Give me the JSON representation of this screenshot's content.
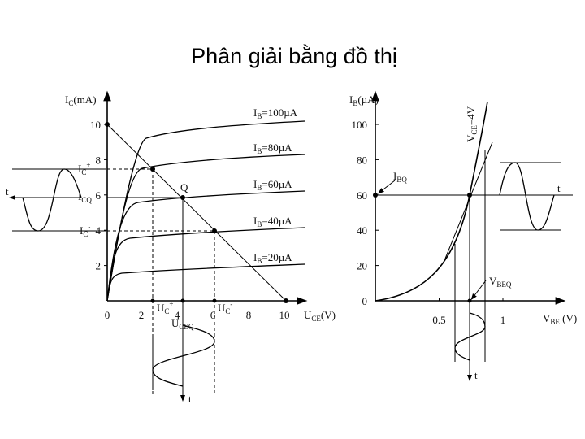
{
  "title": "Phân giải bằng đồ thị",
  "output_chart": {
    "y_label": {
      "base": "I",
      "sub": "C",
      "unit": "(mA)"
    },
    "x_label": {
      "base": "U",
      "sub": "CE",
      "unit": "(V)"
    },
    "yticks": [
      2,
      4,
      6,
      8,
      10
    ],
    "xticks": [
      0,
      2,
      4,
      6,
      8,
      10
    ],
    "curves": [
      {
        "base": "I",
        "sub": "B",
        "value": "=100µA"
      },
      {
        "base": "I",
        "sub": "B",
        "value": "=80µA"
      },
      {
        "base": "I",
        "sub": "B",
        "value": "=60µA"
      },
      {
        "base": "I",
        "sub": "B",
        "value": "=40µA"
      },
      {
        "base": "I",
        "sub": "B",
        "value": "=20µA"
      }
    ],
    "q_label": "Q",
    "ic_plus": {
      "base": "I",
      "sub": "C",
      "sup": "+"
    },
    "icq": {
      "base": "I",
      "sub": "CQ"
    },
    "ic_minus": {
      "base": "I",
      "sub": "C",
      "sup": "-"
    },
    "uc_plus": {
      "base": "U",
      "sub": "C",
      "sup": "+"
    },
    "uceq": {
      "base": "U",
      "sub": "CEQ"
    },
    "uc_minus": {
      "base": "U",
      "sub": "C",
      "sup": "-"
    },
    "time_left": "t",
    "time_bottom": "t"
  },
  "input_chart": {
    "y_label": {
      "base": "I",
      "sub": "B",
      "unit": "(µA)"
    },
    "x_label": {
      "base": "V",
      "sub": "BE",
      "unit": " (V)"
    },
    "yticks": [
      0,
      20,
      40,
      60,
      80,
      100
    ],
    "xticks": [
      0.5,
      1
    ],
    "vce_label": {
      "base": "V",
      "sub": "CE",
      "unit": "=4V"
    },
    "ibq": {
      "base": "I",
      "sub": "BQ"
    },
    "vbeq": {
      "base": "V",
      "sub": "BEQ"
    },
    "time_right": "t",
    "time_bottom": "t"
  }
}
